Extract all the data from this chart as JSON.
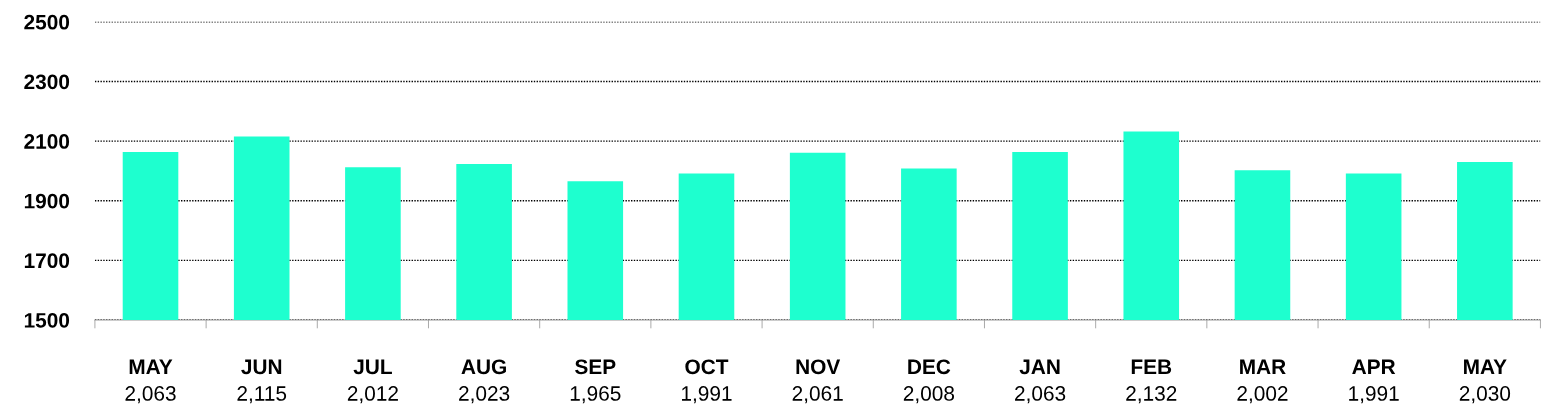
{
  "chart_data": {
    "type": "bar",
    "categories": [
      "MAY",
      "JUN",
      "JUL",
      "AUG",
      "SEP",
      "OCT",
      "NOV",
      "DEC",
      "JAN",
      "FEB",
      "MAR",
      "APR",
      "MAY"
    ],
    "values": [
      2063,
      2115,
      2012,
      2023,
      1965,
      1991,
      2061,
      2008,
      2063,
      2132,
      2002,
      1991,
      2030
    ],
    "value_labels": [
      "2,063",
      "2,115",
      "2,012",
      "2,023",
      "1,965",
      "1,991",
      "2,061",
      "2,008",
      "2,063",
      "2,132",
      "2,002",
      "1,991",
      "2,030"
    ],
    "color": "#1effcf",
    "ylim": [
      1500,
      2500
    ],
    "yticks": [
      1500,
      1700,
      1900,
      2100,
      2300,
      2500
    ],
    "grid": "y",
    "legend": false
  }
}
